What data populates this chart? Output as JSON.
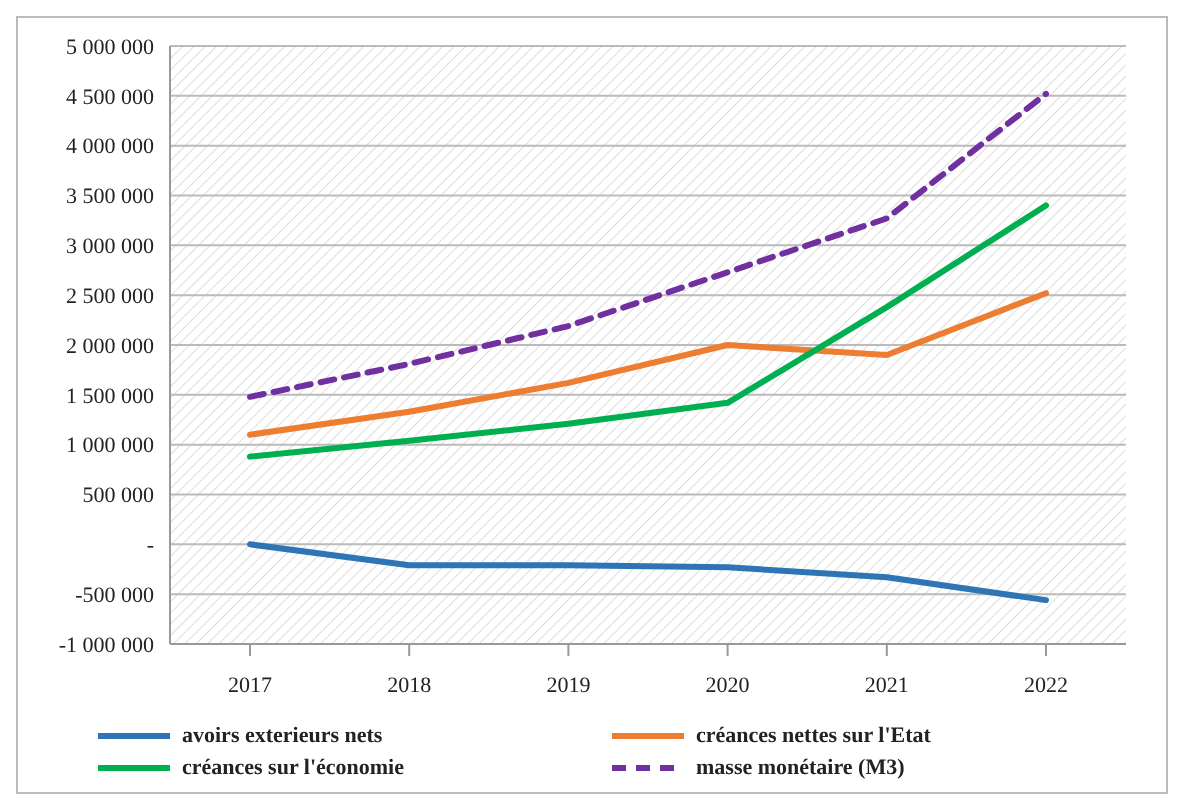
{
  "chart_data": {
    "type": "line",
    "categories": [
      "2017",
      "2018",
      "2019",
      "2020",
      "2021",
      "2022"
    ],
    "series": [
      {
        "name": "avoirs exterieurs nets",
        "color": "#2e75b6",
        "values": [
          0,
          -210000,
          -210000,
          -230000,
          -330000,
          -560000
        ]
      },
      {
        "name": "créances nettes sur l'Etat",
        "color": "#ed7d31",
        "values": [
          1100000,
          1330000,
          1620000,
          2000000,
          1900000,
          2520000
        ]
      },
      {
        "name": "créances  sur l'économie",
        "color": "#00b050",
        "values": [
          880000,
          1040000,
          1210000,
          1420000,
          2380000,
          3400000
        ]
      },
      {
        "name": "masse monétaire (M3)",
        "color": "#7030a0",
        "values": [
          1480000,
          1810000,
          2190000,
          2730000,
          3270000,
          4520000
        ],
        "line_style": "dashed"
      }
    ],
    "ylim": [
      -1000000,
      5000000
    ],
    "yticks": [
      {
        "value": -1000000,
        "label": "-1 000 000"
      },
      {
        "value": -500000,
        "label": "-500 000"
      },
      {
        "value": 0,
        "label": "-"
      },
      {
        "value": 500000,
        "label": "500 000"
      },
      {
        "value": 1000000,
        "label": "1 000 000"
      },
      {
        "value": 1500000,
        "label": "1 500 000"
      },
      {
        "value": 2000000,
        "label": "2 000 000"
      },
      {
        "value": 2500000,
        "label": "2 500 000"
      },
      {
        "value": 3000000,
        "label": "3 000 000"
      },
      {
        "value": 3500000,
        "label": "3 500 000"
      },
      {
        "value": 4000000,
        "label": "4 000 000"
      },
      {
        "value": 4500000,
        "label": "4 500 000"
      },
      {
        "value": 5000000,
        "label": "5 000 000"
      }
    ],
    "grid": "y",
    "legend": "bottom",
    "marker": "none",
    "line_style": "solid"
  }
}
